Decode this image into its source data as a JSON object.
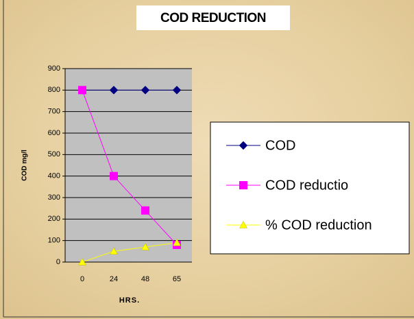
{
  "chart_data": {
    "type": "line",
    "title": "COD REDUCTION",
    "x_label": "HRS.",
    "y_label": "COD mg/l",
    "categories": [
      "0",
      "24",
      "48",
      "65"
    ],
    "series": [
      {
        "name": "COD",
        "color": "#000080",
        "marker": "diamond",
        "values": [
          800,
          800,
          800,
          800
        ]
      },
      {
        "name": "COD reductio",
        "color": "#ff00ff",
        "marker": "square",
        "values": [
          800,
          400,
          240,
          80
        ]
      },
      {
        "name": "% COD reduction",
        "color": "#ffff00",
        "marker": "triangle",
        "values": [
          0,
          50,
          70,
          90
        ]
      }
    ],
    "ylim": [
      0,
      900
    ],
    "yticks": [
      0,
      100,
      200,
      300,
      400,
      500,
      600,
      700,
      800,
      900
    ],
    "grid": true,
    "legend": "right"
  }
}
